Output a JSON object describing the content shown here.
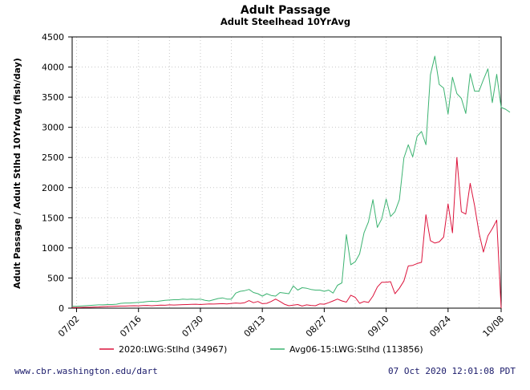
{
  "chart_data": {
    "type": "line",
    "title": "Adult Passage",
    "subtitle": "Adult Steelhead 10YrAvg",
    "ylabel": "Adult Passage / Adult Stlhd 10YrAvg (fish/day)",
    "xlabel": "",
    "x_start": "07/01",
    "x_end": "10/08",
    "xticks": [
      "07/02",
      "07/16",
      "07/30",
      "08/13",
      "08/27",
      "09/10",
      "09/24",
      "10/08"
    ],
    "ylim": [
      0,
      4500
    ],
    "yticks": [
      0,
      500,
      1000,
      1500,
      2000,
      2500,
      3000,
      3500,
      4000,
      4500
    ],
    "grid": true,
    "legend_position": "bottom",
    "series": [
      {
        "name": "2020:LWG:Stlhd (34967)",
        "color": "#dc143c",
        "values": [
          10,
          10,
          12,
          15,
          15,
          18,
          20,
          25,
          28,
          30,
          32,
          35,
          35,
          38,
          40,
          38,
          42,
          45,
          40,
          45,
          50,
          48,
          55,
          52,
          55,
          58,
          60,
          62,
          65,
          60,
          65,
          70,
          68,
          72,
          75,
          70,
          78,
          85,
          80,
          90,
          125,
          90,
          110,
          75,
          80,
          110,
          150,
          110,
          65,
          40,
          50,
          60,
          35,
          55,
          45,
          40,
          70,
          65,
          90,
          120,
          150,
          120,
          100,
          215,
          180,
          80,
          110,
          95,
          200,
          350,
          430,
          430,
          440,
          240,
          330,
          450,
          700,
          710,
          740,
          760,
          1550,
          1120,
          1080,
          1100,
          1180,
          1730,
          1250,
          2500,
          1600,
          1560,
          2070,
          1700,
          1250,
          930,
          1200,
          1320,
          1460,
          0
        ]
      },
      {
        "name": "Avg06-15:LWG:Stlhd (113856)",
        "color": "#3cb371",
        "values": [
          30,
          30,
          35,
          40,
          45,
          50,
          55,
          55,
          60,
          60,
          65,
          80,
          85,
          85,
          90,
          95,
          100,
          110,
          115,
          110,
          120,
          130,
          135,
          140,
          140,
          150,
          145,
          150,
          145,
          150,
          130,
          120,
          140,
          160,
          170,
          150,
          150,
          250,
          280,
          290,
          310,
          260,
          240,
          200,
          240,
          210,
          200,
          260,
          250,
          240,
          370,
          300,
          340,
          330,
          310,
          300,
          300,
          280,
          300,
          250,
          380,
          420,
          1220,
          720,
          770,
          900,
          1250,
          1430,
          1800,
          1340,
          1480,
          1810,
          1520,
          1600,
          1800,
          2490,
          2710,
          2510,
          2850,
          2930,
          2710,
          3870,
          4180,
          3710,
          3650,
          3220,
          3830,
          3560,
          3480,
          3230,
          3890,
          3600,
          3600,
          3790,
          3970,
          3410,
          3880,
          3330,
          3300,
          3250
        ]
      }
    ]
  },
  "footer": {
    "left": "www.cbr.washington.edu/dart",
    "right": "07 Oct 2020 12:01:08 PDT"
  }
}
